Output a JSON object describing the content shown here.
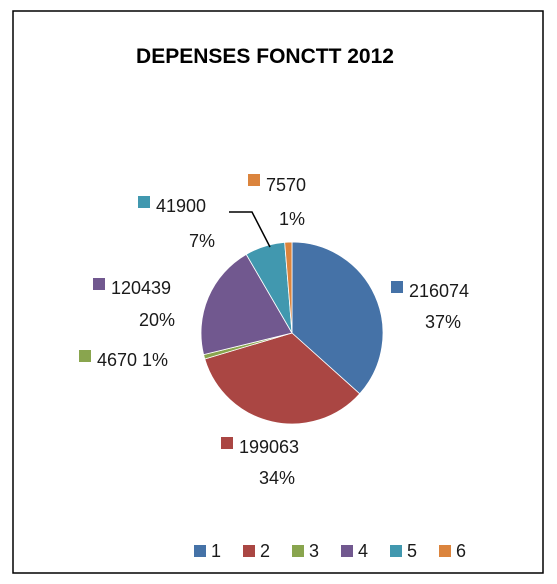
{
  "chart_data": {
    "type": "pie",
    "title": "DEPENSES FONCTT  2012",
    "categories": [
      "1",
      "2",
      "3",
      "4",
      "5",
      "6"
    ],
    "values": [
      216074,
      199063,
      4670,
      120439,
      41900,
      7570
    ],
    "percent_labels": [
      "37%",
      "34%",
      "1%",
      "20%",
      "7%",
      "1%"
    ],
    "colors": [
      "#4572a7",
      "#aa4643",
      "#89a54e",
      "#71588f",
      "#4198af",
      "#db843d"
    ],
    "legend": {
      "position": "bottom",
      "entries": [
        "1",
        "2",
        "3",
        "4",
        "5",
        "6"
      ]
    }
  }
}
